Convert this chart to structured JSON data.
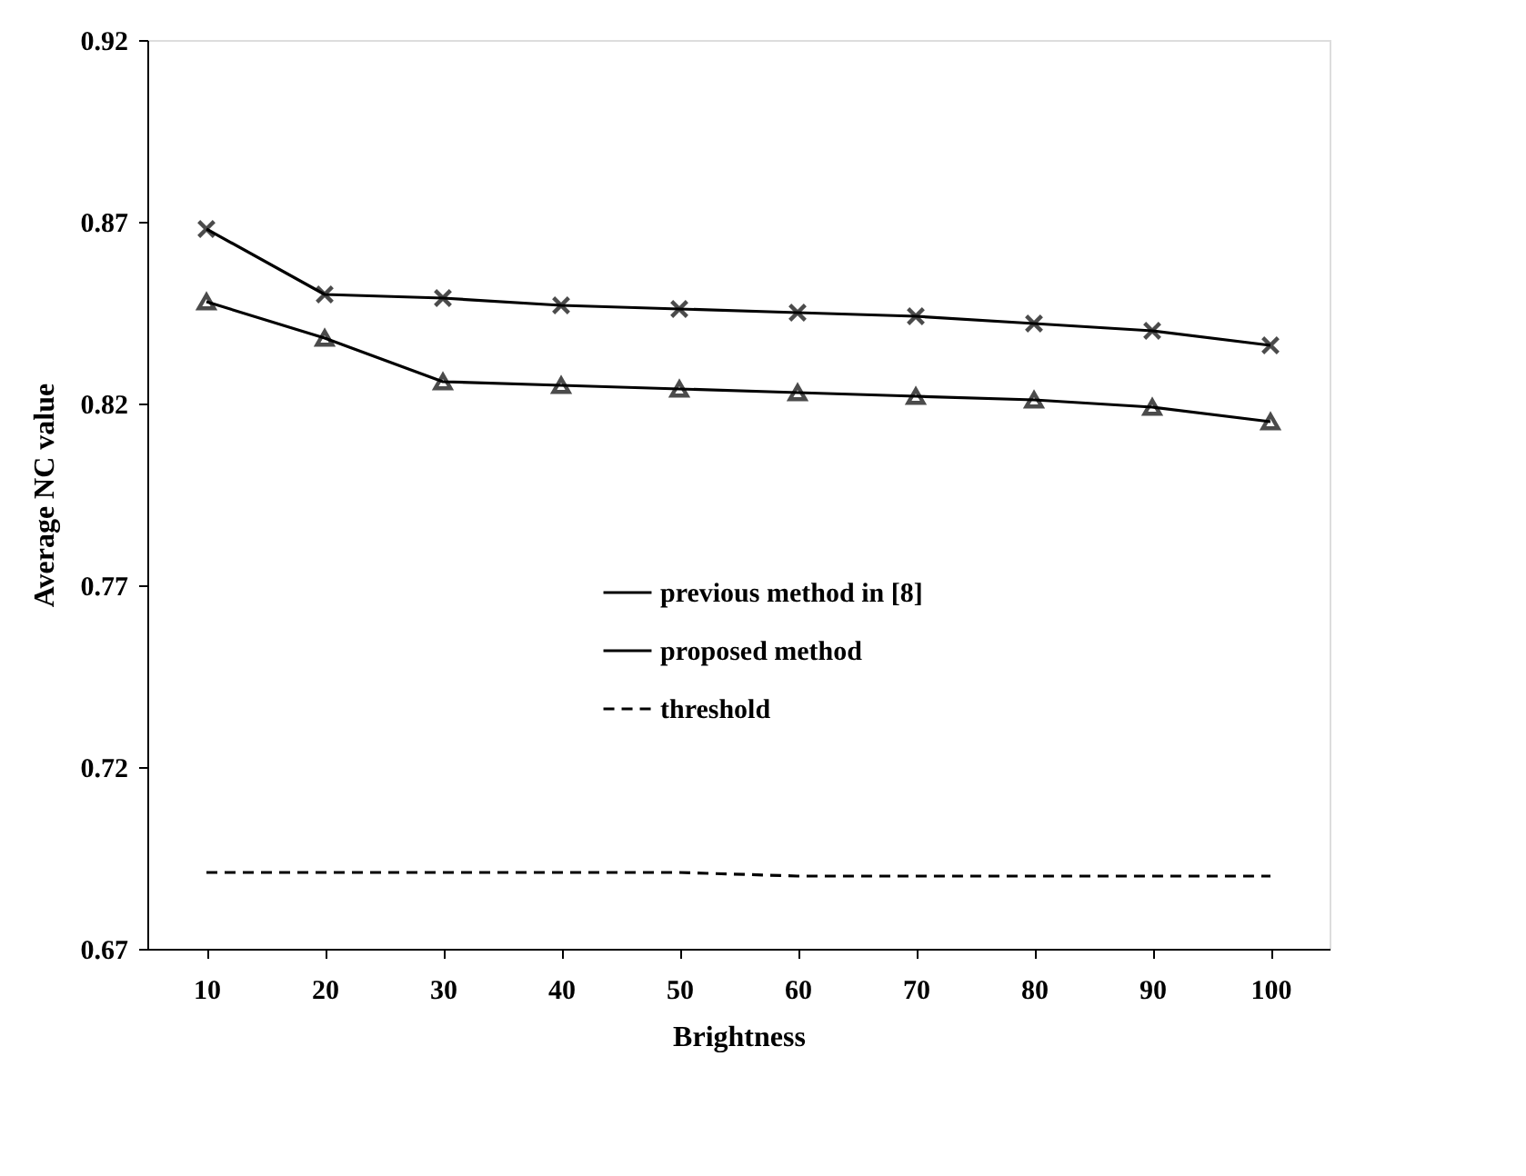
{
  "chart_data": {
    "type": "line",
    "xlabel": "Brightness",
    "ylabel": "Average NC value",
    "categories": [
      "10",
      "20",
      "30",
      "40",
      "50",
      "60",
      "70",
      "80",
      "90",
      "100"
    ],
    "series": [
      {
        "name": "previous method in [8]",
        "color": "#000000",
        "marker": "triangle",
        "line_style": "solid",
        "values": [
          0.848,
          0.838,
          0.826,
          0.825,
          0.824,
          0.823,
          0.822,
          0.821,
          0.819,
          0.815
        ]
      },
      {
        "name": "proposed method",
        "color": "#000000",
        "marker": "cross",
        "line_style": "solid",
        "values": [
          0.868,
          0.85,
          0.849,
          0.847,
          0.846,
          0.845,
          0.844,
          0.842,
          0.84,
          0.836
        ]
      },
      {
        "name": "threshold",
        "color": "#000000",
        "marker": "none",
        "line_style": "dashed",
        "values": [
          0.691,
          0.691,
          0.691,
          0.691,
          0.691,
          0.69,
          0.69,
          0.69,
          0.69,
          0.69
        ]
      }
    ],
    "ylim": [
      0.67,
      0.92
    ],
    "yticks": [
      0.67,
      0.72,
      0.77,
      0.82,
      0.87,
      0.92
    ],
    "grid": false,
    "legend": "center"
  }
}
